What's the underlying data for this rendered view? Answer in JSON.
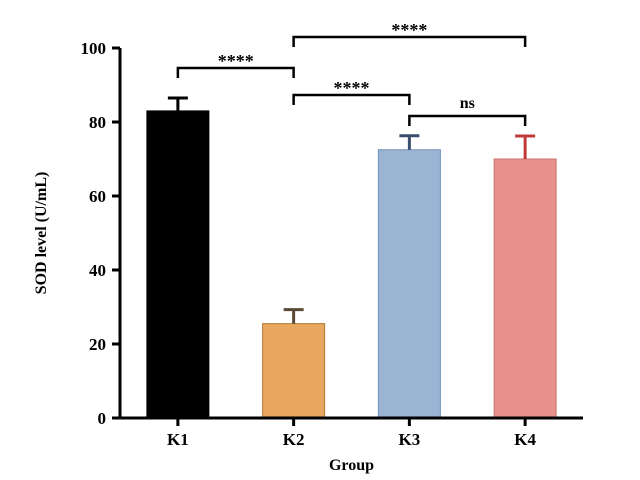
{
  "chart_data": {
    "type": "bar",
    "categories": [
      "K1",
      "K2",
      "K3",
      "K4"
    ],
    "values": [
      83,
      25.5,
      72.5,
      70
    ],
    "errors": [
      3.5,
      3.8,
      3.8,
      6.2
    ],
    "colors": {
      "bars": [
        "#000000",
        "#E8A75E",
        "#9BB4D4",
        "#E8928C"
      ],
      "error_bars": [
        "#000000",
        "#5a4a35",
        "#3a4e6e",
        "#c0393b"
      ]
    },
    "xlabel": "Group",
    "ylabel": "SOD level (U/mL)",
    "ylim": [
      0,
      100
    ],
    "yticks": [
      "0",
      "20",
      "40",
      "60",
      "80",
      "100"
    ],
    "yticks_values": [
      0,
      20,
      40,
      60,
      80,
      100
    ],
    "grid": false,
    "significance": [
      {
        "from": "K1",
        "to": "K2",
        "label": "****"
      },
      {
        "from": "K2",
        "to": "K4",
        "label": "****"
      },
      {
        "from": "K2",
        "to": "K3",
        "label": "****"
      },
      {
        "from": "K3",
        "to": "K4",
        "label": "ns"
      }
    ]
  }
}
